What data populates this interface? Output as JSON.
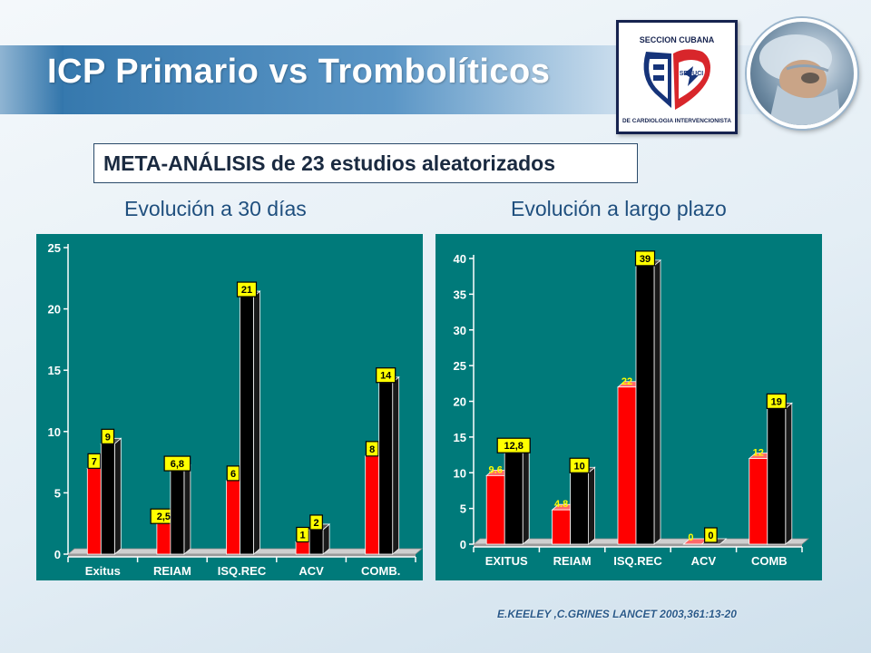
{
  "header": {
    "title": "ICP Primario vs Trombolíticos",
    "subtitle": "META-ANÁLISIS de 23 estudios aleatorizados"
  },
  "logo": {
    "line1": "SECCION CUBANA",
    "line2": "SECUCI",
    "line3": "DE CARDIOLOGIA INTERVENCIONISTA"
  },
  "citation": "E.KEELEY ,C.GRINES   LANCET 2003,361:13-20",
  "colors": {
    "panel": "#007a7a",
    "series_red": "#ff0000",
    "series_black": "#000000",
    "label_box": "#ffff00"
  },
  "chart_data": [
    {
      "type": "bar",
      "title": "Evolución a 30 días",
      "categories": [
        "Exitus",
        "REIAM",
        "ISQ.REC",
        "ACV",
        "COMB."
      ],
      "series": [
        {
          "color": "#ff0000",
          "values": [
            7,
            2.5,
            6,
            1,
            8
          ],
          "labels": [
            "7",
            "2,5",
            "6",
            "1",
            "8"
          ]
        },
        {
          "color": "#000000",
          "values": [
            9,
            6.8,
            21,
            2,
            14
          ],
          "labels": [
            "9",
            "6,8",
            "21",
            "2",
            "14"
          ]
        }
      ],
      "ylim": [
        0,
        25
      ],
      "yticks": [
        "0",
        "5",
        "10",
        "15",
        "20",
        "25"
      ]
    },
    {
      "type": "bar",
      "title": "Evolución a largo plazo",
      "categories": [
        "EXITUS",
        "REIAM",
        "ISQ.REC",
        "ACV",
        "COMB"
      ],
      "series": [
        {
          "color": "#ff0000",
          "values": [
            9.6,
            4.8,
            22,
            0,
            12
          ],
          "labels": [
            "9.6",
            "4.8",
            "22",
            "0",
            "12"
          ]
        },
        {
          "color": "#000000",
          "values": [
            12.8,
            10,
            39,
            0,
            19
          ],
          "labels": [
            "12,8",
            "10",
            "39",
            "0",
            "19"
          ]
        }
      ],
      "ylim": [
        0,
        40
      ],
      "yticks": [
        "0",
        "5",
        "10",
        "15",
        "20",
        "25",
        "30",
        "35",
        "40"
      ]
    }
  ]
}
